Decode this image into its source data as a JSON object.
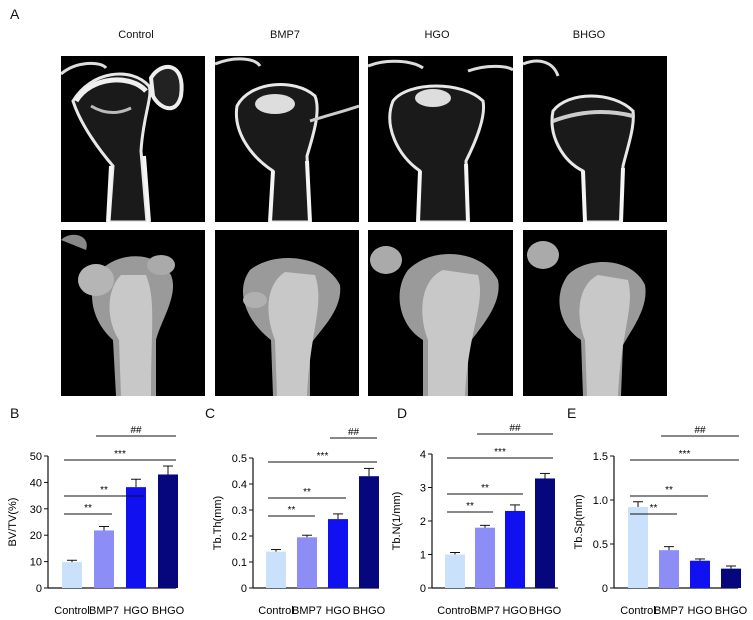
{
  "figure": {
    "panel_labels": [
      "A",
      "B",
      "C",
      "D",
      "E"
    ],
    "groups": [
      "Control",
      "BMP7",
      "HGO",
      "BHGO"
    ]
  },
  "panel_a": {
    "column_labels": [
      "Control",
      "BMP7",
      "HGO",
      "BHGO"
    ],
    "rows": [
      "2D micro-CT section",
      "3D reconstruction"
    ]
  },
  "chart_data": [
    {
      "type": "bar",
      "panel": "B",
      "categories": [
        "Control",
        "BMP7",
        "HGO",
        "BHGO"
      ],
      "values": [
        9.8,
        21.8,
        38.2,
        43.0
      ],
      "errors": [
        0.7,
        1.5,
        3.0,
        3.2
      ],
      "ylabel": "BV/TV(%)",
      "ylim": [
        0,
        50
      ],
      "yticks": [
        "0",
        "10",
        "20",
        "30",
        "40",
        "50"
      ],
      "significance": [
        {
          "from": 0,
          "to": 1,
          "label": "**"
        },
        {
          "from": 0,
          "to": 2,
          "label": "**"
        },
        {
          "from": 0,
          "to": 3,
          "label": "***"
        },
        {
          "from": 1,
          "to": 3,
          "label": "##"
        }
      ]
    },
    {
      "type": "bar",
      "panel": "C",
      "categories": [
        "Control",
        "BMP7",
        "HGO",
        "BHGO"
      ],
      "values": [
        0.14,
        0.195,
        0.265,
        0.43
      ],
      "errors": [
        0.008,
        0.008,
        0.02,
        0.03
      ],
      "ylabel": "Tb.Th(mm)",
      "ylim": [
        0,
        0.5
      ],
      "yticks": [
        "0",
        "0.1",
        "0.2",
        "0.3",
        "0.4",
        "0.5"
      ],
      "significance": [
        {
          "from": 0,
          "to": 1,
          "label": "**"
        },
        {
          "from": 0,
          "to": 2,
          "label": "**"
        },
        {
          "from": 0,
          "to": 3,
          "label": "***"
        },
        {
          "from": 2,
          "to": 3,
          "label": "##"
        }
      ]
    },
    {
      "type": "bar",
      "panel": "D",
      "categories": [
        "Control",
        "BMP7",
        "HGO",
        "BHGO"
      ],
      "values": [
        1.0,
        1.8,
        2.3,
        3.27
      ],
      "errors": [
        0.06,
        0.07,
        0.18,
        0.15
      ],
      "ylabel": "Tb.N(1/mm)",
      "ylim": [
        0,
        4
      ],
      "yticks": [
        "0",
        "1",
        "2",
        "3",
        "4"
      ],
      "significance": [
        {
          "from": 0,
          "to": 1,
          "label": "**"
        },
        {
          "from": 0,
          "to": 2,
          "label": "**"
        },
        {
          "from": 0,
          "to": 3,
          "label": "***"
        },
        {
          "from": 1,
          "to": 3,
          "label": "##"
        }
      ]
    },
    {
      "type": "bar",
      "panel": "E",
      "categories": [
        "Control",
        "BMP7",
        "HGO",
        "BHGO"
      ],
      "values": [
        0.92,
        0.43,
        0.31,
        0.22
      ],
      "errors": [
        0.06,
        0.04,
        0.02,
        0.03
      ],
      "ylabel": "Tb.Sp(mm)",
      "ylim": [
        0,
        1.5
      ],
      "yticks": [
        "0",
        "0.5",
        "1.0",
        "1.5"
      ],
      "significance": [
        {
          "from": 0,
          "to": 1,
          "label": "**"
        },
        {
          "from": 0,
          "to": 2,
          "label": "**"
        },
        {
          "from": 0,
          "to": 3,
          "label": "***"
        },
        {
          "from": 1,
          "to": 3,
          "label": "##"
        }
      ]
    }
  ],
  "colors": {
    "bars": [
      "#c9e1fb",
      "#8c8ef5",
      "#1010f0",
      "#06067d"
    ],
    "axis": "#111111",
    "ct_background": "#000000"
  }
}
